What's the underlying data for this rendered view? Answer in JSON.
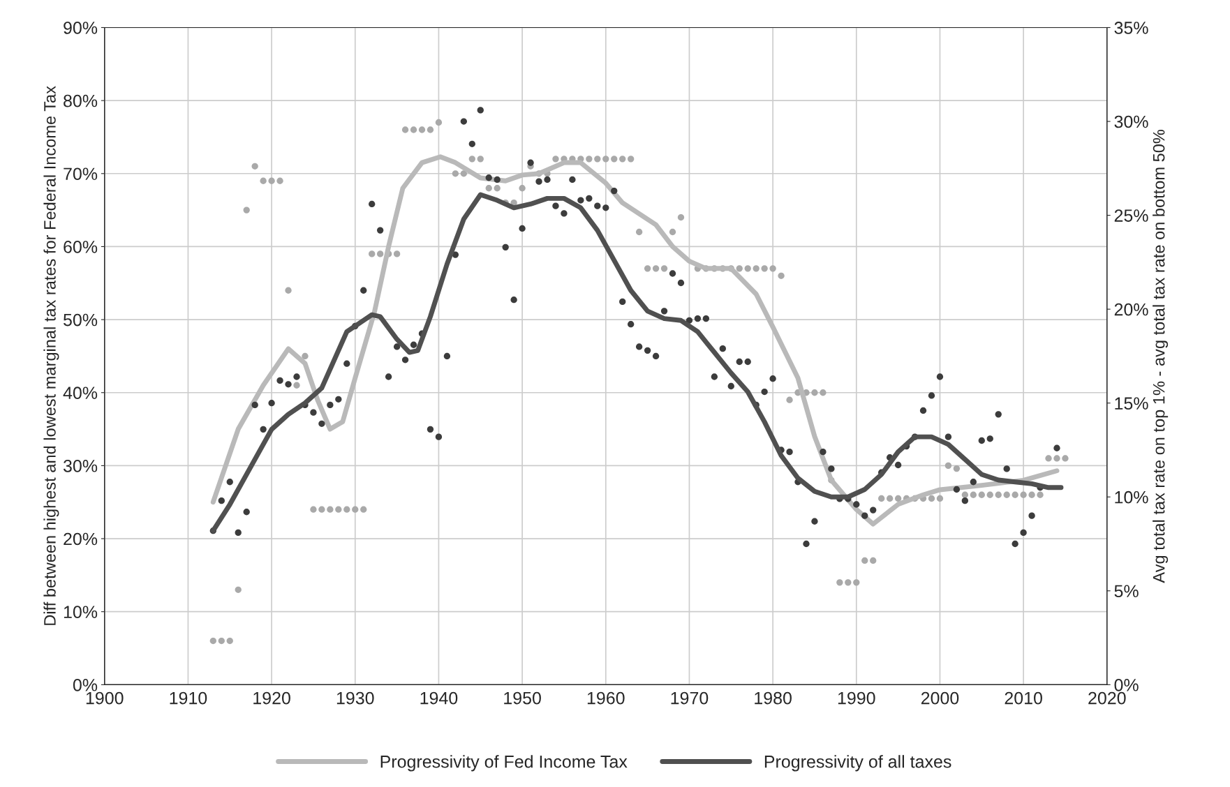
{
  "chart_data": {
    "type": "scatter",
    "ylabel": "Diff between highest and lowest marginal tax rates for Federal Income Tax",
    "y2label": "Avg total tax rate on top 1% - avg total tax rate on bottom 50%",
    "xlim": [
      1900,
      2020
    ],
    "xticks": [
      1900,
      1910,
      1920,
      1930,
      1940,
      1950,
      1960,
      1970,
      1980,
      1990,
      2000,
      2010,
      2020
    ],
    "ylim": [
      0,
      90
    ],
    "yticks": [
      {
        "value": 0,
        "label": "0%"
      },
      {
        "value": 10,
        "label": "10%"
      },
      {
        "value": 20,
        "label": "20%"
      },
      {
        "value": 30,
        "label": "30%"
      },
      {
        "value": 40,
        "label": "40%"
      },
      {
        "value": 50,
        "label": "50%"
      },
      {
        "value": 60,
        "label": "60%"
      },
      {
        "value": 70,
        "label": "70%"
      },
      {
        "value": 80,
        "label": "80%"
      },
      {
        "value": 90,
        "label": "90%"
      }
    ],
    "y2lim": [
      0,
      35
    ],
    "y2ticks": [
      {
        "value": 0,
        "label": "0%"
      },
      {
        "value": 5,
        "label": "5%"
      },
      {
        "value": 10,
        "label": "10%"
      },
      {
        "value": 15,
        "label": "15%"
      },
      {
        "value": 20,
        "label": "20%"
      },
      {
        "value": 25,
        "label": "25%"
      },
      {
        "value": 30,
        "label": "30%"
      },
      {
        "value": 35,
        "label": "35%"
      }
    ],
    "grid": true,
    "legend": "bottom",
    "series": [
      {
        "marker": "circle",
        "color": "#a9a9a9",
        "x": [
          1913,
          1914,
          1915,
          1916,
          1917,
          1918,
          1919,
          1920,
          1921,
          1922,
          1923,
          1924,
          1925,
          1926,
          1927,
          1928,
          1929,
          1930,
          1931,
          1932,
          1933,
          1934,
          1935,
          1936,
          1937,
          1938,
          1939,
          1940,
          1942,
          1943,
          1944,
          1945,
          1946,
          1947,
          1948,
          1949,
          1950,
          1951,
          1952,
          1953,
          1954,
          1955,
          1956,
          1957,
          1958,
          1959,
          1960,
          1961,
          1962,
          1963,
          1964,
          1965,
          1966,
          1967,
          1968,
          1969,
          1971,
          1972,
          1973,
          1974,
          1975,
          1976,
          1977,
          1978,
          1979,
          1980,
          1981,
          1982,
          1983,
          1984,
          1985,
          1986,
          1987,
          1988,
          1989,
          1990,
          1991,
          1992,
          1993,
          1994,
          1995,
          1996,
          1997,
          1998,
          1999,
          2000,
          2001,
          2002,
          2003,
          2004,
          2005,
          2006,
          2007,
          2008,
          2009,
          2010,
          2011,
          2012,
          2013,
          2014,
          2015
        ],
        "values": [
          6,
          6,
          6,
          13,
          65,
          71,
          69,
          69,
          69,
          54,
          41,
          45,
          24,
          24,
          24,
          24,
          24,
          24,
          24,
          59,
          59,
          59,
          59,
          76,
          76,
          76,
          76,
          77,
          70,
          70,
          72,
          72,
          68,
          68,
          66,
          66,
          68,
          71,
          70,
          70,
          72,
          72,
          72,
          72,
          72,
          72,
          72,
          72,
          72,
          72,
          62,
          57,
          57,
          57,
          62,
          64,
          57,
          57,
          57,
          57,
          57,
          57,
          57,
          57,
          57,
          57,
          56,
          39,
          40,
          40,
          40,
          40,
          28,
          14,
          14,
          14,
          17,
          17,
          25.5,
          25.5,
          25.5,
          25.5,
          25.5,
          25.5,
          25.5,
          25.5,
          30,
          29.6,
          26,
          26,
          26,
          26,
          26,
          26,
          26,
          26,
          26,
          26,
          31,
          31,
          31
        ]
      },
      {
        "marker": "circle",
        "axis": "y2",
        "color": "#3c3c3c",
        "x": [
          1913,
          1914,
          1915,
          1916,
          1917,
          1918,
          1919,
          1920,
          1921,
          1922,
          1923,
          1924,
          1925,
          1926,
          1927,
          1928,
          1929,
          1930,
          1931,
          1932,
          1933,
          1934,
          1935,
          1936,
          1937,
          1938,
          1939,
          1940,
          1941,
          1942,
          1943,
          1944,
          1945,
          1946,
          1947,
          1948,
          1949,
          1950,
          1951,
          1952,
          1953,
          1954,
          1955,
          1956,
          1957,
          1958,
          1959,
          1960,
          1961,
          1962,
          1963,
          1964,
          1965,
          1966,
          1967,
          1968,
          1969,
          1970,
          1971,
          1972,
          1973,
          1974,
          1975,
          1976,
          1977,
          1978,
          1979,
          1980,
          1981,
          1982,
          1983,
          1984,
          1985,
          1986,
          1987,
          1988,
          1989,
          1990,
          1991,
          1992,
          1993,
          1994,
          1995,
          1996,
          1997,
          1998,
          1999,
          2000,
          2001,
          2002,
          2003,
          2004,
          2005,
          2006,
          2007,
          2008,
          2009,
          2010,
          2011,
          2012,
          2014
        ],
        "values": [
          8.2,
          9.8,
          10.8,
          8.1,
          9.2,
          14.9,
          13.6,
          15.0,
          16.2,
          16.0,
          16.4,
          14.9,
          14.5,
          13.9,
          14.9,
          15.2,
          17.1,
          19.1,
          21.0,
          25.6,
          24.2,
          16.4,
          18.0,
          17.3,
          18.1,
          18.7,
          13.6,
          13.2,
          17.5,
          22.9,
          30.0,
          28.8,
          30.6,
          27.0,
          26.9,
          23.3,
          20.5,
          24.3,
          27.8,
          26.8,
          26.9,
          25.5,
          25.1,
          26.9,
          25.8,
          25.9,
          25.5,
          25.4,
          26.3,
          20.4,
          19.2,
          18.0,
          17.8,
          17.5,
          19.9,
          21.9,
          21.4,
          19.4,
          19.5,
          19.5,
          16.4,
          17.9,
          15.9,
          17.2,
          17.2,
          14.9,
          15.6,
          16.3,
          12.5,
          12.4,
          10.8,
          7.5,
          8.7,
          12.4,
          11.5,
          9.9,
          9.9,
          9.6,
          9.0,
          9.3,
          11.3,
          12.1,
          11.7,
          12.7,
          13.2,
          14.6,
          15.4,
          16.4,
          13.2,
          10.4,
          9.8,
          10.8,
          13.0,
          13.1,
          14.4,
          11.5,
          7.5,
          8.1,
          9.0,
          10.5,
          12.6
        ]
      },
      {
        "type": "line",
        "marker": "none",
        "name": "Progressivity of Fed Income Tax",
        "color": "#b9b9b9",
        "x": [
          1913,
          1916,
          1919,
          1922,
          1924,
          1925.5,
          1927,
          1928.5,
          1930,
          1932.3,
          1934,
          1935.7,
          1938,
          1940.2,
          1942,
          1945,
          1948,
          1950,
          1952,
          1955,
          1957,
          1960,
          1962,
          1964,
          1966,
          1968,
          1970,
          1972,
          1975,
          1978,
          1980,
          1983,
          1985,
          1987,
          1990,
          1992,
          1995,
          1998,
          2000,
          2005,
          2010,
          2014
        ],
        "values": [
          25,
          35,
          41,
          46,
          44,
          39,
          35,
          36,
          42,
          51,
          60,
          68,
          71.5,
          72.3,
          71.5,
          69.4,
          69,
          69.8,
          70,
          71.5,
          71.5,
          68.7,
          66,
          64.5,
          63,
          60,
          58,
          57,
          57,
          53.5,
          49,
          42,
          34,
          28,
          24,
          22,
          24.7,
          26,
          26.7,
          27.3,
          28,
          29.3
        ]
      },
      {
        "type": "line",
        "marker": "none",
        "axis": "y2",
        "name": "Progressivity of all taxes",
        "color": "#505050",
        "x": [
          1913,
          1915,
          1918,
          1920,
          1922,
          1924,
          1926,
          1929,
          1932,
          1933,
          1935,
          1936.5,
          1937.5,
          1939,
          1941,
          1943,
          1945,
          1947,
          1949,
          1951,
          1953,
          1955,
          1957,
          1959,
          1961,
          1963,
          1965,
          1967,
          1969,
          1971,
          1973,
          1975,
          1977,
          1979,
          1981,
          1983,
          1985,
          1987,
          1989,
          1991,
          1993,
          1995,
          1997,
          1999,
          2001,
          2003,
          2005,
          2007,
          2009,
          2011,
          2013,
          2014.5
        ],
        "values": [
          8.2,
          9.6,
          12,
          13.6,
          14.4,
          15,
          15.8,
          18.8,
          19.7,
          19.6,
          18.4,
          17.7,
          17.8,
          19.6,
          22.4,
          24.8,
          26.1,
          25.8,
          25.4,
          25.6,
          25.9,
          25.9,
          25.4,
          24.2,
          22.6,
          21,
          19.9,
          19.5,
          19.4,
          18.8,
          17.7,
          16.6,
          15.6,
          14,
          12.2,
          11,
          10.3,
          10,
          10,
          10.4,
          11.2,
          12.4,
          13.2,
          13.2,
          12.8,
          12,
          11.2,
          10.9,
          10.8,
          10.7,
          10.5,
          10.5
        ]
      }
    ]
  }
}
